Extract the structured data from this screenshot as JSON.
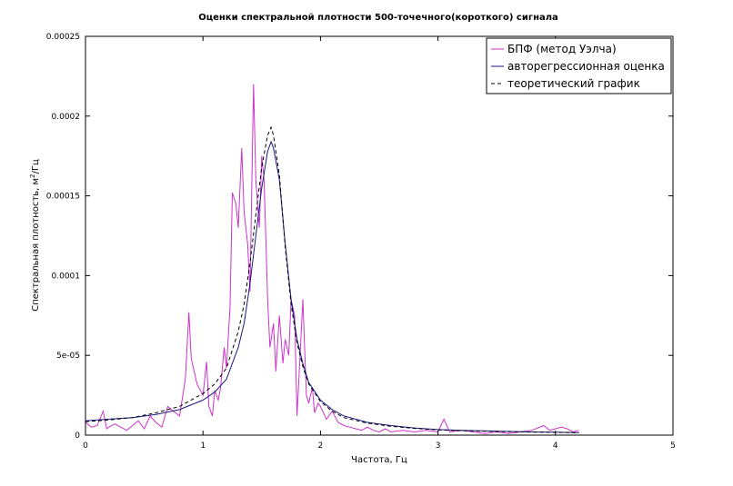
{
  "chart_data": {
    "type": "line",
    "title": "Оценки спектральной плотности 500-точечного(короткого) сигнала",
    "xlabel": "Частота, Гц",
    "ylabel_main": "Спектральная плотность, м",
    "ylabel_sup": "2",
    "ylabel_tail": "/Гц",
    "xlim": [
      0,
      5
    ],
    "ylim": [
      0,
      0.00025
    ],
    "x_ticks": [
      0,
      1,
      2,
      3,
      4,
      5
    ],
    "x_tick_labels": [
      "0",
      "1",
      "2",
      "3",
      "4",
      "5"
    ],
    "y_ticks": [
      0,
      5e-05,
      0.0001,
      0.00015,
      0.0002,
      0.00025
    ],
    "y_tick_labels": [
      "0",
      "5e-05",
      "0.0001",
      "0.00015",
      "0.0002",
      "0.00025"
    ],
    "grid": false,
    "legend_position": "top-right",
    "series": [
      {
        "name": "БПФ (метод Уэлча)",
        "style": "solid",
        "color": "#cc33cc",
        "x": [
          0,
          0.05,
          0.1,
          0.15,
          0.18,
          0.2,
          0.25,
          0.3,
          0.35,
          0.4,
          0.45,
          0.5,
          0.55,
          0.6,
          0.65,
          0.7,
          0.75,
          0.8,
          0.85,
          0.88,
          0.9,
          0.95,
          1.0,
          1.03,
          1.05,
          1.08,
          1.1,
          1.13,
          1.15,
          1.18,
          1.2,
          1.23,
          1.25,
          1.28,
          1.3,
          1.33,
          1.35,
          1.38,
          1.4,
          1.43,
          1.45,
          1.48,
          1.5,
          1.52,
          1.55,
          1.57,
          1.6,
          1.62,
          1.65,
          1.68,
          1.7,
          1.73,
          1.75,
          1.78,
          1.8,
          1.83,
          1.85,
          1.88,
          1.9,
          1.93,
          1.95,
          1.98,
          2.0,
          2.05,
          2.1,
          2.15,
          2.2,
          2.25,
          2.3,
          2.35,
          2.4,
          2.45,
          2.5,
          2.55,
          2.6,
          2.7,
          2.8,
          2.9,
          3.0,
          3.05,
          3.1,
          3.2,
          3.3,
          3.4,
          3.5,
          3.6,
          3.7,
          3.8,
          3.9,
          3.95,
          4.0,
          4.05,
          4.1,
          4.15,
          4.2
        ],
        "y": [
          8e-06,
          5e-06,
          6e-06,
          1.5e-05,
          4e-06,
          5e-06,
          7e-06,
          5e-06,
          3e-06,
          6e-06,
          9e-06,
          4e-06,
          1.2e-05,
          8e-06,
          5e-06,
          1.8e-05,
          1.5e-05,
          1.2e-05,
          3.5e-05,
          7.7e-05,
          4.8e-05,
          3.2e-05,
          2.5e-05,
          4.6e-05,
          1.8e-05,
          1.2e-05,
          2.8e-05,
          2.2e-05,
          3e-05,
          5.5e-05,
          4.2e-05,
          8e-05,
          0.000152,
          0.000145,
          0.00013,
          0.00018,
          0.00014,
          0.00012,
          9e-05,
          0.00022,
          0.00016,
          0.00013,
          0.000175,
          0.00016,
          8.5e-05,
          5.5e-05,
          7e-05,
          4e-05,
          7.5e-05,
          4.5e-05,
          6e-05,
          5e-05,
          8.5e-05,
          7.5e-05,
          1.2e-05,
          5.5e-05,
          8.5e-05,
          2.5e-05,
          2e-05,
          3e-05,
          1.4e-05,
          2e-05,
          1.8e-05,
          1e-05,
          1.5e-05,
          8e-06,
          6e-06,
          5e-06,
          4e-06,
          3e-06,
          5e-06,
          3e-06,
          2e-06,
          4e-06,
          2e-06,
          3e-06,
          2e-06,
          3e-06,
          2e-06,
          1e-05,
          2e-06,
          3e-06,
          2e-06,
          1e-06,
          2e-06,
          1e-06,
          2e-06,
          3e-06,
          6e-06,
          3e-06,
          4e-06,
          5e-06,
          4e-06,
          2e-06,
          3e-06
        ]
      },
      {
        "name": "авторегрессионная оценка",
        "style": "solid",
        "color": "#1a1a80",
        "x": [
          0,
          0.2,
          0.4,
          0.6,
          0.8,
          1.0,
          1.1,
          1.2,
          1.3,
          1.35,
          1.4,
          1.45,
          1.5,
          1.55,
          1.58,
          1.6,
          1.65,
          1.7,
          1.75,
          1.8,
          1.85,
          1.9,
          2.0,
          2.1,
          2.2,
          2.4,
          2.6,
          2.8,
          3.0,
          3.2,
          3.5,
          3.8,
          4.0,
          4.2
        ],
        "y": [
          9e-06,
          1e-05,
          1.1e-05,
          1.3e-05,
          1.6e-05,
          2.2e-05,
          2.7e-05,
          3.5e-05,
          5.5e-05,
          7e-05,
          9.5e-05,
          0.000125,
          0.000155,
          0.000178,
          0.000184,
          0.00018,
          0.00016,
          0.00012,
          8.5e-05,
          6e-05,
          4.5e-05,
          3.3e-05,
          2.2e-05,
          1.6e-05,
          1.2e-05,
          8e-06,
          6e-06,
          4.5e-06,
          3.5e-06,
          3e-06,
          2.5e-06,
          2e-06,
          1.8e-06,
          1.6e-06
        ]
      },
      {
        "name": "теоретический график",
        "style": "dashed",
        "color": "#000000",
        "x": [
          0,
          0.2,
          0.4,
          0.6,
          0.8,
          1.0,
          1.1,
          1.2,
          1.3,
          1.35,
          1.4,
          1.45,
          1.5,
          1.55,
          1.58,
          1.6,
          1.65,
          1.7,
          1.75,
          1.8,
          1.85,
          1.9,
          2.0,
          2.1,
          2.2,
          2.4,
          2.6,
          2.8,
          3.0,
          3.2,
          3.5,
          3.8,
          4.0,
          4.2
        ],
        "y": [
          8.5e-06,
          9.5e-06,
          1.1e-05,
          1.4e-05,
          1.8e-05,
          2.6e-05,
          3.2e-05,
          4.2e-05,
          6.5e-05,
          8.2e-05,
          0.000108,
          0.000138,
          0.000168,
          0.000188,
          0.000193,
          0.000188,
          0.000163,
          0.000118,
          8.2e-05,
          5.8e-05,
          4.3e-05,
          3.2e-05,
          2.1e-05,
          1.5e-05,
          1.1e-05,
          7.5e-06,
          5.5e-06,
          4.2e-06,
          3.3e-06,
          2.8e-06,
          2.3e-06,
          1.9e-06,
          1.7e-06,
          1.5e-06
        ]
      }
    ]
  }
}
